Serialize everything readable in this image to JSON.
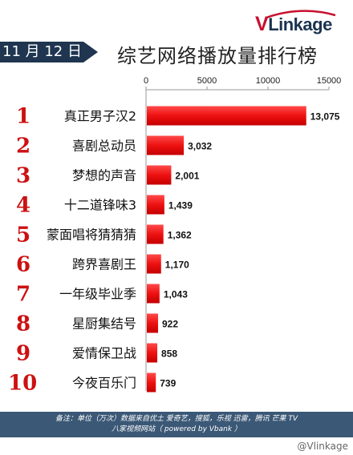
{
  "brand": {
    "v": "V",
    "rest": "Linkage"
  },
  "date_tag": "11 月 12 日",
  "title": "综艺网络播放量排行榜",
  "footer": {
    "line1": "备注：单位（万次）数据来自优土 爱奇艺，搜狐，乐视  迅雷，腾讯 芒果 TV",
    "line2": "八家视频网站（ powered by Vbank ）"
  },
  "watermark": "@Vlinkage",
  "colors": {
    "bar": "#ee1111",
    "rank": "#cc1111",
    "navy": "#1f3550"
  },
  "chart_data": {
    "type": "bar",
    "orientation": "horizontal",
    "ranks": [
      "1",
      "2",
      "3",
      "4",
      "5",
      "6",
      "7",
      "8",
      "9",
      "10"
    ],
    "categories": [
      "真正男子汉2",
      "喜剧总动员",
      "梦想的声音",
      "十二道锋味3",
      "蒙面唱将猜猜猜",
      "跨界喜剧王",
      "一年级毕业季",
      "星厨集结号",
      "爱情保卫战",
      "今夜百乐门"
    ],
    "values": [
      13075,
      3032,
      2001,
      1439,
      1362,
      1170,
      1043,
      922,
      858,
      739
    ],
    "value_labels": [
      "13,075",
      "3,032",
      "2,001",
      "1,439",
      "1,362",
      "1,170",
      "1,043",
      "922",
      "858",
      "739"
    ],
    "xlim": [
      0,
      15000
    ],
    "xticks": [
      0,
      5000,
      10000,
      15000
    ],
    "xtick_labels": [
      "0",
      "5000",
      "10000",
      "15000"
    ],
    "grid": false,
    "axis_position": "top"
  }
}
